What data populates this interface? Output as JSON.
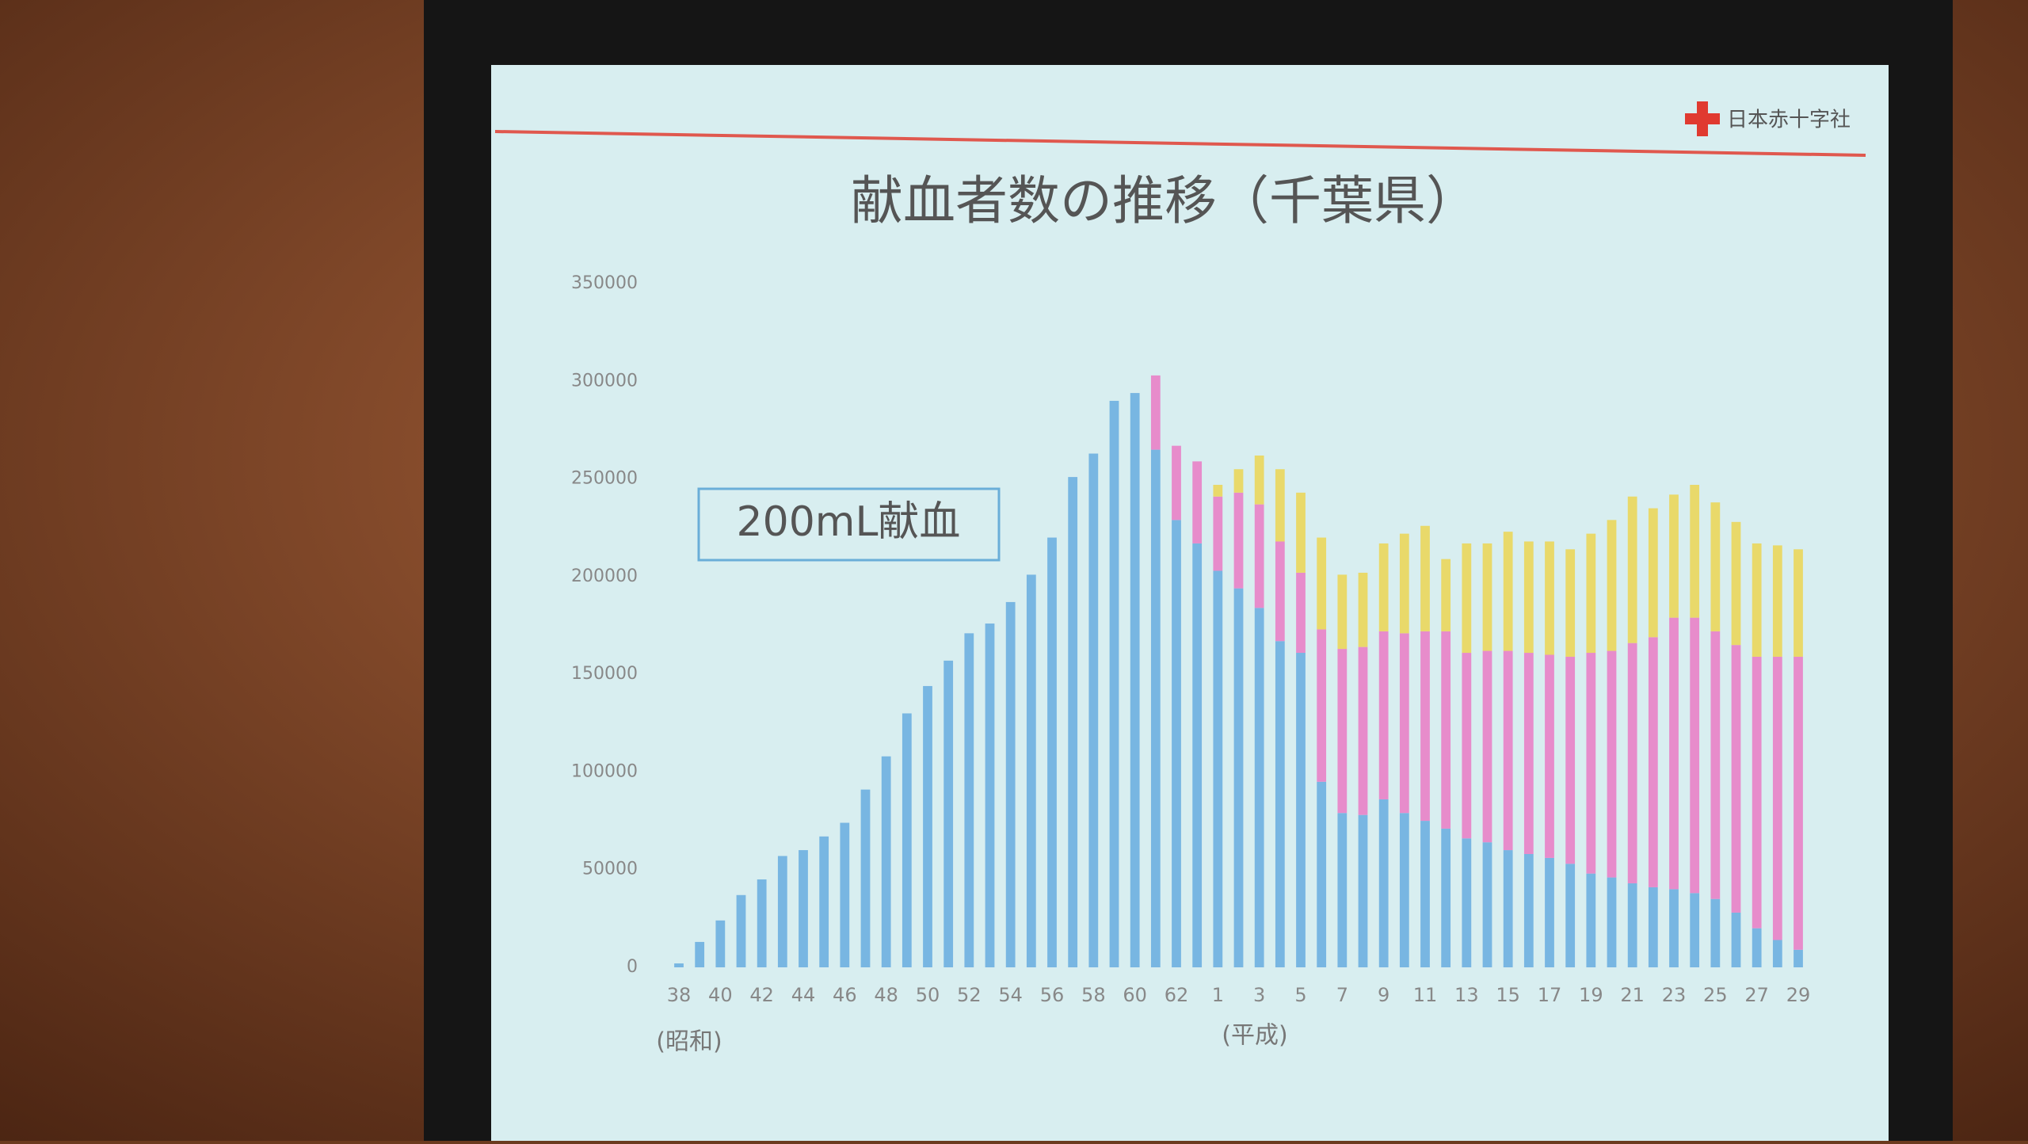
{
  "chart_data": {
    "type": "stacked_bar",
    "title": "献血者数の推移（千葉県）",
    "logo": "日本赤十字社",
    "era_labels": [
      "(昭和)",
      "(平成)"
    ],
    "categories": [
      "38",
      null,
      "40",
      null,
      "42",
      null,
      "44",
      null,
      "46",
      null,
      "48",
      null,
      "50",
      null,
      "52",
      null,
      "54",
      null,
      "56",
      null,
      "58",
      null,
      "60",
      null,
      "62",
      null,
      "1",
      null,
      "3",
      null,
      "5",
      null,
      "7",
      null,
      "9",
      null,
      "11",
      null,
      "13",
      null,
      "15",
      null,
      "17",
      null,
      "19",
      null,
      "21",
      null,
      "23",
      null,
      "25",
      null,
      "27",
      null,
      "29"
    ],
    "series": [
      {
        "name": "200mL献血",
        "color": "#78b6e2",
        "values": [
          2000,
          13000,
          24000,
          37000,
          45000,
          57000,
          60000,
          67000,
          74000,
          91000,
          108000,
          130000,
          144000,
          157000,
          171000,
          176000,
          187000,
          201000,
          220000,
          251000,
          263000,
          290000,
          294000,
          265000,
          229000,
          217000,
          203000,
          194000,
          184000,
          167000,
          161000,
          95000,
          79000,
          78000,
          86000,
          79000,
          75000,
          71000,
          66000,
          64000,
          60000,
          58000,
          56000,
          53000,
          48000,
          46000,
          43000,
          41000,
          40000,
          38000,
          35000,
          28000,
          20000,
          14000,
          9000
        ]
      },
      {
        "color": "#e78ccb",
        "values": [
          0,
          0,
          0,
          0,
          0,
          0,
          0,
          0,
          0,
          0,
          0,
          0,
          0,
          0,
          0,
          0,
          0,
          0,
          0,
          0,
          0,
          0,
          0,
          38000,
          38000,
          42000,
          38000,
          49000,
          53000,
          51000,
          41000,
          78000,
          84000,
          86000,
          86000,
          92000,
          97000,
          101000,
          95000,
          98000,
          102000,
          103000,
          104000,
          106000,
          113000,
          116000,
          123000,
          128000,
          139000,
          141000,
          137000,
          137000,
          139000,
          145000,
          150000
        ]
      },
      {
        "color": "#e9d96a",
        "values": [
          0,
          0,
          0,
          0,
          0,
          0,
          0,
          0,
          0,
          0,
          0,
          0,
          0,
          0,
          0,
          0,
          0,
          0,
          0,
          0,
          0,
          0,
          0,
          0,
          0,
          0,
          6000,
          12000,
          25000,
          37000,
          41000,
          47000,
          38000,
          38000,
          45000,
          51000,
          54000,
          37000,
          56000,
          55000,
          61000,
          57000,
          58000,
          55000,
          61000,
          67000,
          75000,
          66000,
          63000,
          68000,
          66000,
          63000,
          58000,
          57000,
          55000
        ]
      }
    ],
    "ylim": [
      0,
      350000
    ],
    "yticks": [
      0,
      50000,
      100000,
      150000,
      200000,
      250000,
      300000,
      350000
    ],
    "grid": false
  }
}
